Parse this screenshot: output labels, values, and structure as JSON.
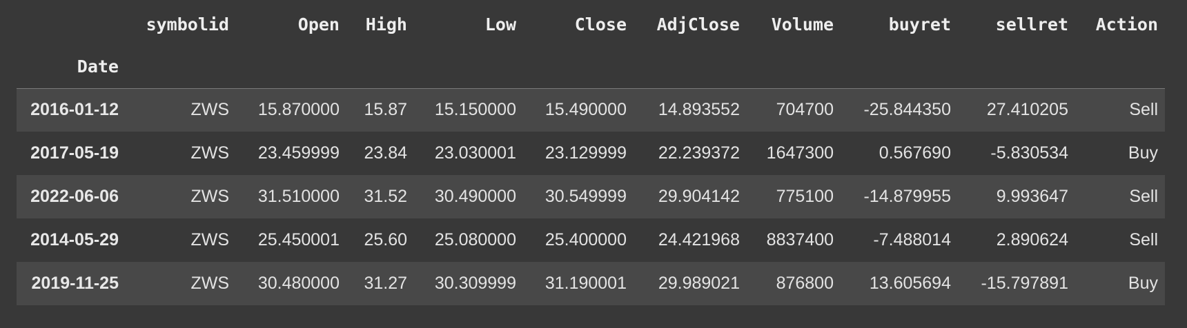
{
  "table": {
    "columns": [
      "symbolid",
      "Open",
      "High",
      "Low",
      "Close",
      "AdjClose",
      "Volume",
      "buyret",
      "sellret",
      "Action"
    ],
    "index_name": "Date",
    "rows": [
      {
        "date": "2016-01-12",
        "cells": [
          "ZWS",
          "15.870000",
          "15.87",
          "15.150000",
          "15.490000",
          "14.893552",
          "704700",
          "-25.844350",
          "27.410205",
          "Sell"
        ]
      },
      {
        "date": "2017-05-19",
        "cells": [
          "ZWS",
          "23.459999",
          "23.84",
          "23.030001",
          "23.129999",
          "22.239372",
          "1647300",
          "0.567690",
          "-5.830534",
          "Buy"
        ]
      },
      {
        "date": "2022-06-06",
        "cells": [
          "ZWS",
          "31.510000",
          "31.52",
          "30.490000",
          "30.549999",
          "29.904142",
          "775100",
          "-14.879955",
          "9.993647",
          "Sell"
        ]
      },
      {
        "date": "2014-05-29",
        "cells": [
          "ZWS",
          "25.450001",
          "25.60",
          "25.080000",
          "25.400000",
          "24.421968",
          "8837400",
          "-7.488014",
          "2.890624",
          "Sell"
        ]
      },
      {
        "date": "2019-11-25",
        "cells": [
          "ZWS",
          "30.480000",
          "31.27",
          "30.309999",
          "31.190001",
          "29.989021",
          "876800",
          "13.605694",
          "-15.797891",
          "Buy"
        ]
      }
    ]
  },
  "colors": {
    "background": "#383838",
    "row_stripe": "#484848",
    "text": "#e3e3e3"
  }
}
